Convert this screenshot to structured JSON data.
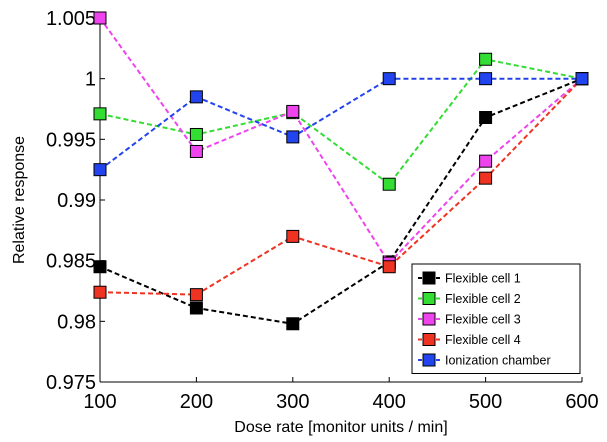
{
  "chart_data": {
    "type": "line",
    "title": "",
    "xlabel": "Dose rate [monitor units / min]",
    "ylabel": "Relative response",
    "x": [
      100,
      200,
      300,
      400,
      500,
      600
    ],
    "xlim": [
      100,
      600
    ],
    "ylim": [
      0.975,
      1.005
    ],
    "xticks": [
      "100",
      "200",
      "300",
      "400",
      "500",
      "600"
    ],
    "yticks": [
      "0.975",
      "0.98",
      "0.985",
      "0.99",
      "0.995",
      "1",
      "1.005"
    ],
    "yticks_values": [
      0.975,
      0.98,
      0.985,
      0.99,
      0.995,
      1.0,
      1.005
    ],
    "grid": false,
    "legend_position": "bottom-right",
    "line_style": "dashed",
    "marker": "square",
    "series": [
      {
        "name": "Flexible cell 1",
        "color": "#000000",
        "values": [
          0.9845,
          0.9811,
          0.9798,
          0.9849,
          0.9968,
          1.0
        ]
      },
      {
        "name": "Flexible cell 2",
        "color": "#33dd33",
        "values": [
          0.9971,
          0.9954,
          0.9972,
          0.9913,
          1.0016,
          1.0
        ]
      },
      {
        "name": "Flexible cell 3",
        "color": "#ee44ee",
        "values": [
          1.005,
          0.994,
          0.9973,
          0.9848,
          0.9932,
          1.0
        ]
      },
      {
        "name": "Flexible cell 4",
        "color": "#ee3322",
        "values": [
          0.9824,
          0.9822,
          0.987,
          0.9845,
          0.9918,
          1.0
        ]
      },
      {
        "name": "Ionization chamber",
        "color": "#2244ee",
        "values": [
          0.9925,
          0.9985,
          0.9952,
          1.0,
          1.0,
          1.0
        ]
      }
    ]
  }
}
